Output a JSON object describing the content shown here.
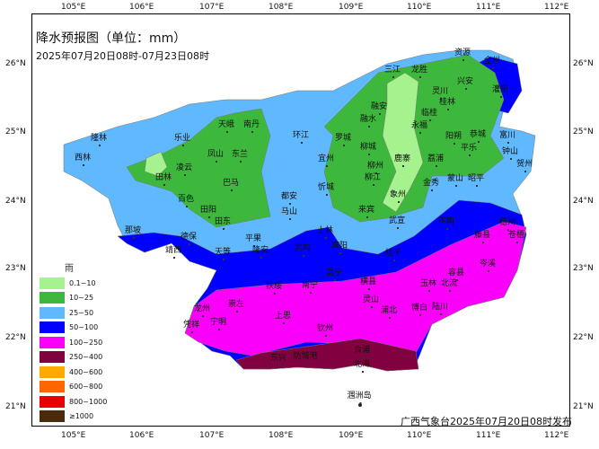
{
  "title": "降水预报图（单位：mm）",
  "subtitle": "2025年07月20日08时-07月23日08时",
  "footer": "广西气象台2025年07月20日08时发布",
  "x_ticks": [
    "105°E",
    "106°E",
    "107°E",
    "108°E",
    "109°E",
    "110°E",
    "111°E",
    "112°E"
  ],
  "y_ticks": [
    "26°N",
    "25°N",
    "24°N",
    "23°N",
    "22°N",
    "21°N"
  ],
  "legend": {
    "title": "雨",
    "items": [
      {
        "label": "0.1~10",
        "color": "#a6f28e"
      },
      {
        "label": "10~25",
        "color": "#3db83d"
      },
      {
        "label": "25~50",
        "color": "#60b8ff"
      },
      {
        "label": "50~100",
        "color": "#0000fe"
      },
      {
        "label": "100~250",
        "color": "#fa00fa"
      },
      {
        "label": "250~400",
        "color": "#800040"
      },
      {
        "label": "400~600",
        "color": "#ffaa00"
      },
      {
        "label": "600~800",
        "color": "#ff6600"
      },
      {
        "label": "800~1000",
        "color": "#e60000"
      },
      {
        "label": "≥1000",
        "color": "#4a2a0a"
      }
    ]
  },
  "cities": [
    "资源",
    "全州",
    "三江",
    "龙胜",
    "兴安",
    "灌阳",
    "灵川",
    "桂林",
    "临桂",
    "融安",
    "融水",
    "永福",
    "环江",
    "罗城",
    "南丹",
    "天峨",
    "乐业",
    "凤山",
    "东兰",
    "隆林",
    "西林",
    "凌云",
    "田林",
    "巴马",
    "百色",
    "田阳",
    "田东",
    "那坡",
    "德保",
    "靖西",
    "天等",
    "平果",
    "隆安",
    "都安",
    "马山",
    "宜州",
    "柳城",
    "忻城",
    "鹿寨",
    "柳州",
    "柳江",
    "象州",
    "来宾",
    "武宣",
    "金秀",
    "蒙山",
    "昭平",
    "阳朔",
    "平乐",
    "荔浦",
    "恭城",
    "富川",
    "钟山",
    "贺州",
    "上林",
    "宾阳",
    "武鸣",
    "横县",
    "桂平",
    "平南",
    "藤县",
    "梧州",
    "苍梧",
    "岑溪",
    "容县",
    "玉林",
    "北流",
    "灵山",
    "浦北",
    "博白",
    "陆川",
    "南宁",
    "邕宁",
    "扶绥",
    "崇左",
    "龙州",
    "宁明",
    "凭祥",
    "上思",
    "钦州",
    "防城港",
    "东兴",
    "合浦",
    "北海",
    "涠洲岛"
  ]
}
